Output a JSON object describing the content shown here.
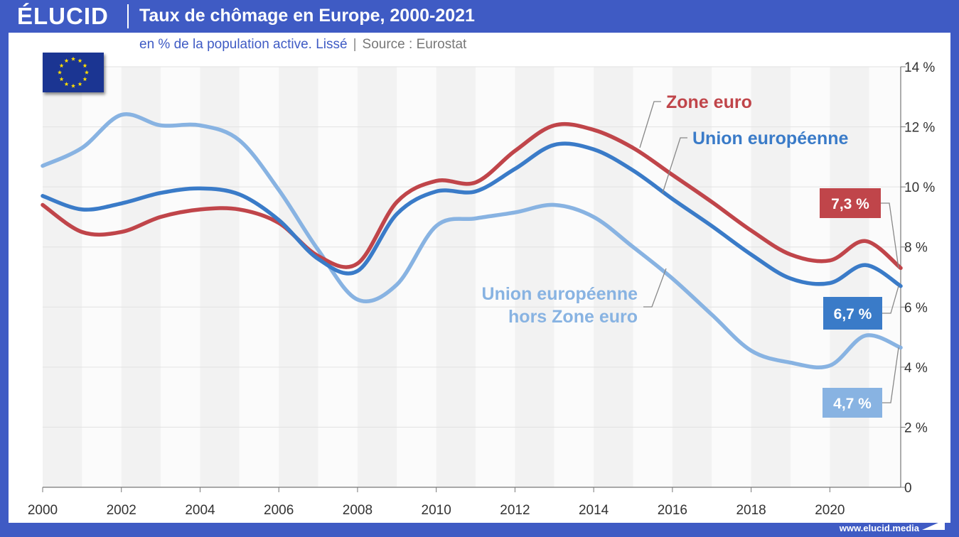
{
  "header": {
    "logo": "ÉLUCID",
    "title": "Taux de chômage en Europe, 2000-2021"
  },
  "subtitle": {
    "main": "en % de la population active. Lissé",
    "separator": "|",
    "source": "Source : Eurostat"
  },
  "footer": {
    "url": "www.elucid.media"
  },
  "flag": {
    "icon": "eu-flag-icon",
    "background": "#1b3592",
    "stars": "#ffdd00"
  },
  "chart_data": {
    "type": "line",
    "xlim": [
      2000,
      2021.8
    ],
    "ylim": [
      0,
      14
    ],
    "x_ticks": [
      2000,
      2002,
      2004,
      2006,
      2008,
      2010,
      2012,
      2014,
      2016,
      2018,
      2020
    ],
    "y_ticks": [
      0,
      2,
      4,
      6,
      8,
      10,
      12,
      14
    ],
    "x_tick_labels": [
      "2000",
      "2002",
      "2004",
      "2006",
      "2008",
      "2010",
      "2012",
      "2014",
      "2016",
      "2018",
      "2020"
    ],
    "y_tick_labels": [
      "0",
      "2 %",
      "4 %",
      "6 %",
      "8 %",
      "10 %",
      "12 %",
      "14 %"
    ],
    "grid": "horizontal",
    "background_bands": "alternating by year",
    "series": [
      {
        "key": "ez",
        "name": "Zone euro",
        "color": "#c0454a",
        "end_label": "7,3 %",
        "points": [
          [
            2000,
            9.4
          ],
          [
            2001,
            8.5
          ],
          [
            2002,
            8.5
          ],
          [
            2003,
            9.0
          ],
          [
            2004,
            9.25
          ],
          [
            2005,
            9.25
          ],
          [
            2006,
            8.8
          ],
          [
            2007,
            7.7
          ],
          [
            2008,
            7.45
          ],
          [
            2009,
            9.5
          ],
          [
            2010,
            10.2
          ],
          [
            2011,
            10.15
          ],
          [
            2012,
            11.2
          ],
          [
            2013,
            12.05
          ],
          [
            2014,
            11.9
          ],
          [
            2015,
            11.3
          ],
          [
            2016,
            10.4
          ],
          [
            2017,
            9.5
          ],
          [
            2018,
            8.55
          ],
          [
            2019,
            7.75
          ],
          [
            2020,
            7.55
          ],
          [
            2020.9,
            8.2
          ],
          [
            2021.8,
            7.3
          ]
        ]
      },
      {
        "key": "eu",
        "name": "Union européenne",
        "color": "#3a7bc8",
        "end_label": "6,7 %",
        "points": [
          [
            2000,
            9.7
          ],
          [
            2001,
            9.25
          ],
          [
            2002,
            9.45
          ],
          [
            2003,
            9.8
          ],
          [
            2004,
            9.95
          ],
          [
            2005,
            9.75
          ],
          [
            2006,
            8.9
          ],
          [
            2007,
            7.6
          ],
          [
            2008,
            7.2
          ],
          [
            2009,
            9.1
          ],
          [
            2010,
            9.85
          ],
          [
            2011,
            9.85
          ],
          [
            2012,
            10.6
          ],
          [
            2013,
            11.4
          ],
          [
            2014,
            11.25
          ],
          [
            2015,
            10.55
          ],
          [
            2016,
            9.6
          ],
          [
            2017,
            8.7
          ],
          [
            2018,
            7.75
          ],
          [
            2019,
            6.95
          ],
          [
            2020,
            6.8
          ],
          [
            2020.9,
            7.4
          ],
          [
            2021.8,
            6.7
          ]
        ]
      },
      {
        "key": "non_ez",
        "name": "Union européenne hors Zone euro",
        "label_lines": [
          "Union européenne",
          "hors Zone euro"
        ],
        "color": "#88b3e2",
        "end_label": "4,7 %",
        "points": [
          [
            2000,
            10.7
          ],
          [
            2001,
            11.3
          ],
          [
            2002,
            12.4
          ],
          [
            2003,
            12.05
          ],
          [
            2004,
            12.05
          ],
          [
            2005,
            11.55
          ],
          [
            2006,
            9.9
          ],
          [
            2007,
            7.9
          ],
          [
            2008,
            6.25
          ],
          [
            2009,
            6.75
          ],
          [
            2010,
            8.7
          ],
          [
            2011,
            8.95
          ],
          [
            2012,
            9.15
          ],
          [
            2013,
            9.4
          ],
          [
            2014,
            9.0
          ],
          [
            2015,
            8.0
          ],
          [
            2016,
            6.95
          ],
          [
            2017,
            5.75
          ],
          [
            2018,
            4.55
          ],
          [
            2019,
            4.15
          ],
          [
            2020,
            4.05
          ],
          [
            2020.9,
            5.05
          ],
          [
            2021.8,
            4.65
          ]
        ]
      }
    ]
  }
}
